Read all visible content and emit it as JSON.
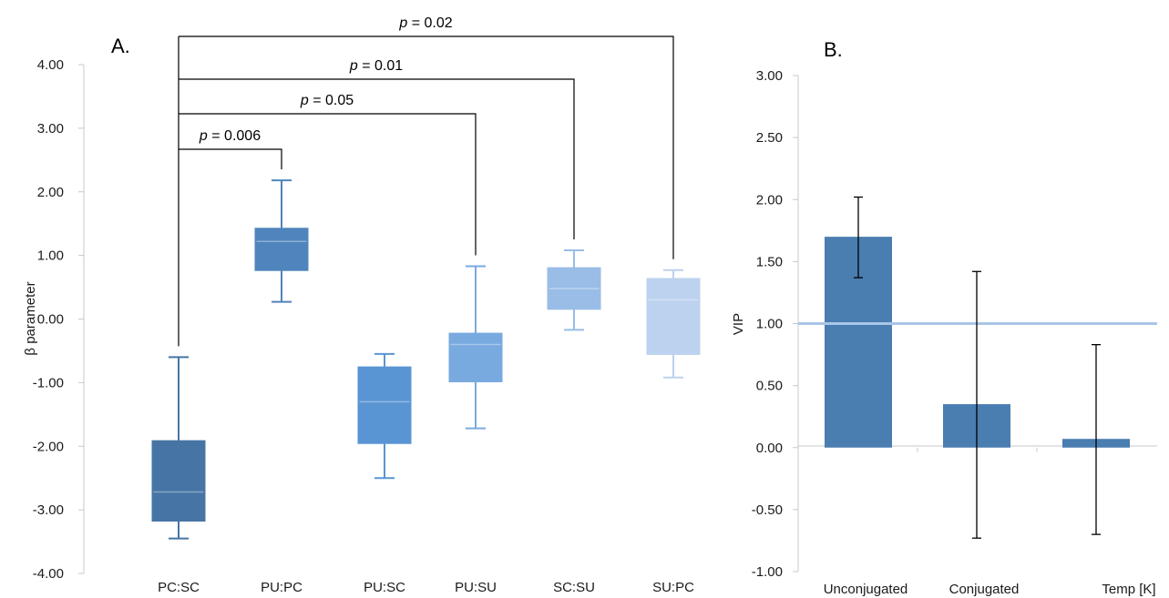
{
  "chart_data": [
    {
      "panel_label": "A.",
      "type": "box",
      "ylabel": "β parameter",
      "ylim": [
        -4.0,
        4.0
      ],
      "yticks": [
        "4.00",
        "3.00",
        "2.00",
        "1.00",
        "0.00",
        "-1.00",
        "-2.00",
        "-3.00",
        "-4.00"
      ],
      "ytick_values": [
        4,
        3,
        2,
        1,
        0,
        -1,
        -2,
        -3,
        -4
      ],
      "categories": [
        "PC:SC",
        "PU:PC",
        "PU:SC",
        "PU:SU",
        "SC:SU",
        "SU:PC"
      ],
      "boxes": [
        {
          "category": "PC:SC",
          "min": -3.45,
          "q1": -3.17,
          "median": -2.72,
          "q3": -1.92,
          "max": -0.6,
          "color": "#4675a5"
        },
        {
          "category": "PU:PC",
          "min": 0.27,
          "q1": 0.77,
          "median": 1.22,
          "q3": 1.42,
          "max": 2.18,
          "color": "#4f84bc"
        },
        {
          "category": "PU:SC",
          "min": -2.5,
          "q1": -1.95,
          "median": -1.3,
          "q3": -0.76,
          "max": -0.55,
          "color": "#5a95d3"
        },
        {
          "category": "PU:SU",
          "min": -1.72,
          "q1": -0.98,
          "median": -0.4,
          "q3": -0.23,
          "max": 0.83,
          "color": "#79aadf"
        },
        {
          "category": "SC:SU",
          "min": -0.17,
          "q1": 0.16,
          "median": 0.48,
          "q3": 0.8,
          "max": 1.08,
          "color": "#99bde6"
        },
        {
          "category": "SU:PC",
          "min": -0.92,
          "q1": -0.55,
          "median": 0.3,
          "q3": 0.63,
          "max": 0.77,
          "color": "#bcd2ee"
        }
      ],
      "annotations": [
        {
          "from": "PC:SC",
          "to": "PU:PC",
          "p_prefix": "p",
          "p_value": " = 0.006"
        },
        {
          "from": "PC:SC",
          "to": "PU:SU",
          "p_prefix": "p",
          "p_value": " = 0.05"
        },
        {
          "from": "PC:SC",
          "to": "SC:SU",
          "p_prefix": "p",
          "p_value": " = 0.01"
        },
        {
          "from": "PC:SC",
          "to": "SU:PC",
          "p_prefix": "p",
          "p_value": " = 0.02"
        }
      ],
      "grid": false
    },
    {
      "panel_label": "B.",
      "type": "bar",
      "ylabel": "VIP",
      "ylim": [
        -1.0,
        3.0
      ],
      "yticks": [
        "3.00",
        "2.50",
        "2.00",
        "1.50",
        "1.00",
        "0.50",
        "0.00",
        "-0.50",
        "-1.00"
      ],
      "ytick_values": [
        3,
        2.5,
        2,
        1.5,
        1,
        0.5,
        0,
        -0.5,
        -1
      ],
      "categories": [
        "Unconjugated",
        "Conjugated",
        "Temp [K]"
      ],
      "values": [
        1.7,
        0.35,
        0.07
      ],
      "error_low": [
        1.37,
        -0.73,
        -0.7
      ],
      "error_high": [
        2.02,
        1.42,
        0.83
      ],
      "reference_line": 1.0,
      "bar_color": "#4a7db0",
      "reference_color": "#a9c6e8",
      "grid": false
    }
  ]
}
